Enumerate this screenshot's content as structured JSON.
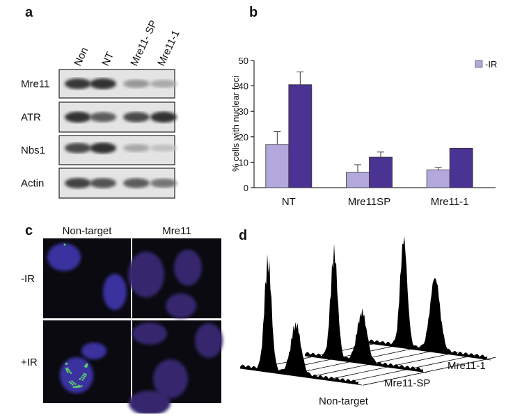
{
  "panel_a": {
    "letter": "a",
    "lanes": [
      "Non",
      "NT",
      "Mre11- SP",
      "Mre11-1"
    ],
    "rows": [
      "Mre11",
      "ATR",
      "Nbs1",
      "Actin"
    ]
  },
  "chart_data": {
    "type": "bar",
    "letter": "b",
    "y_label": "% cells with nuclear foci",
    "categories": [
      "NT",
      "Mre11SP",
      "Mre11-1"
    ],
    "series": [
      {
        "name": "-IR",
        "color": "#b3a8dc",
        "values": [
          17,
          6,
          7
        ],
        "errors": [
          5,
          3,
          1
        ]
      },
      {
        "color": "#4a3392",
        "values": [
          40.5,
          12,
          15.5
        ],
        "errors": [
          5,
          2,
          null
        ]
      }
    ],
    "ylim": [
      0,
      50
    ],
    "yticks": [
      0,
      10,
      20,
      30,
      40,
      50
    ],
    "legend": "top-right"
  },
  "panel_c": {
    "letter": "c",
    "columns": [
      "Non-target",
      "Mre11"
    ],
    "rows": [
      "-IR",
      "+IR"
    ]
  },
  "panel_d": {
    "letter": "d",
    "labels": [
      "Non-target",
      "Mre11-SP",
      "Mre11-1"
    ]
  }
}
